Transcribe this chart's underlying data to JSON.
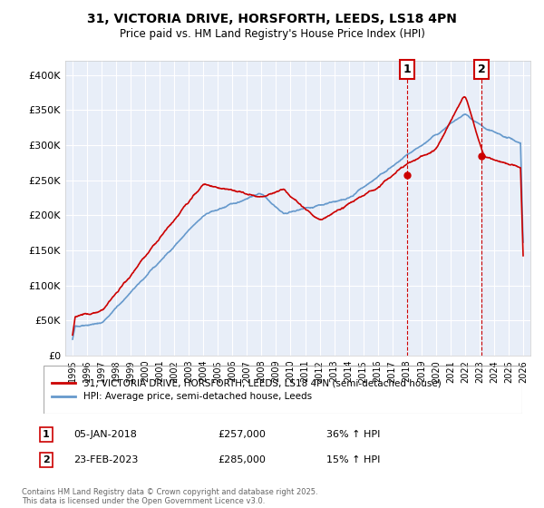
{
  "title_line1": "31, VICTORIA DRIVE, HORSFORTH, LEEDS, LS18 4PN",
  "title_line2": "Price paid vs. HM Land Registry's House Price Index (HPI)",
  "legend_line1": "31, VICTORIA DRIVE, HORSFORTH, LEEDS, LS18 4PN (semi-detached house)",
  "legend_line2": "HPI: Average price, semi-detached house, Leeds",
  "line1_color": "#cc0000",
  "line2_color": "#6699cc",
  "marker1_date": 2018.02,
  "marker1_price": 257000,
  "marker1_label": "1",
  "marker2_date": 2023.15,
  "marker2_price": 285000,
  "marker2_label": "2",
  "ylim": [
    0,
    420000
  ],
  "xlim": [
    1994.5,
    2026.5
  ],
  "footer": "Contains HM Land Registry data © Crown copyright and database right 2025.\nThis data is licensed under the Open Government Licence v3.0.",
  "table_row1": [
    "1",
    "05-JAN-2018",
    "£257,000",
    "36% ↑ HPI"
  ],
  "table_row2": [
    "2",
    "23-FEB-2023",
    "£285,000",
    "15% ↑ HPI"
  ],
  "plot_background": "#e8eef8"
}
